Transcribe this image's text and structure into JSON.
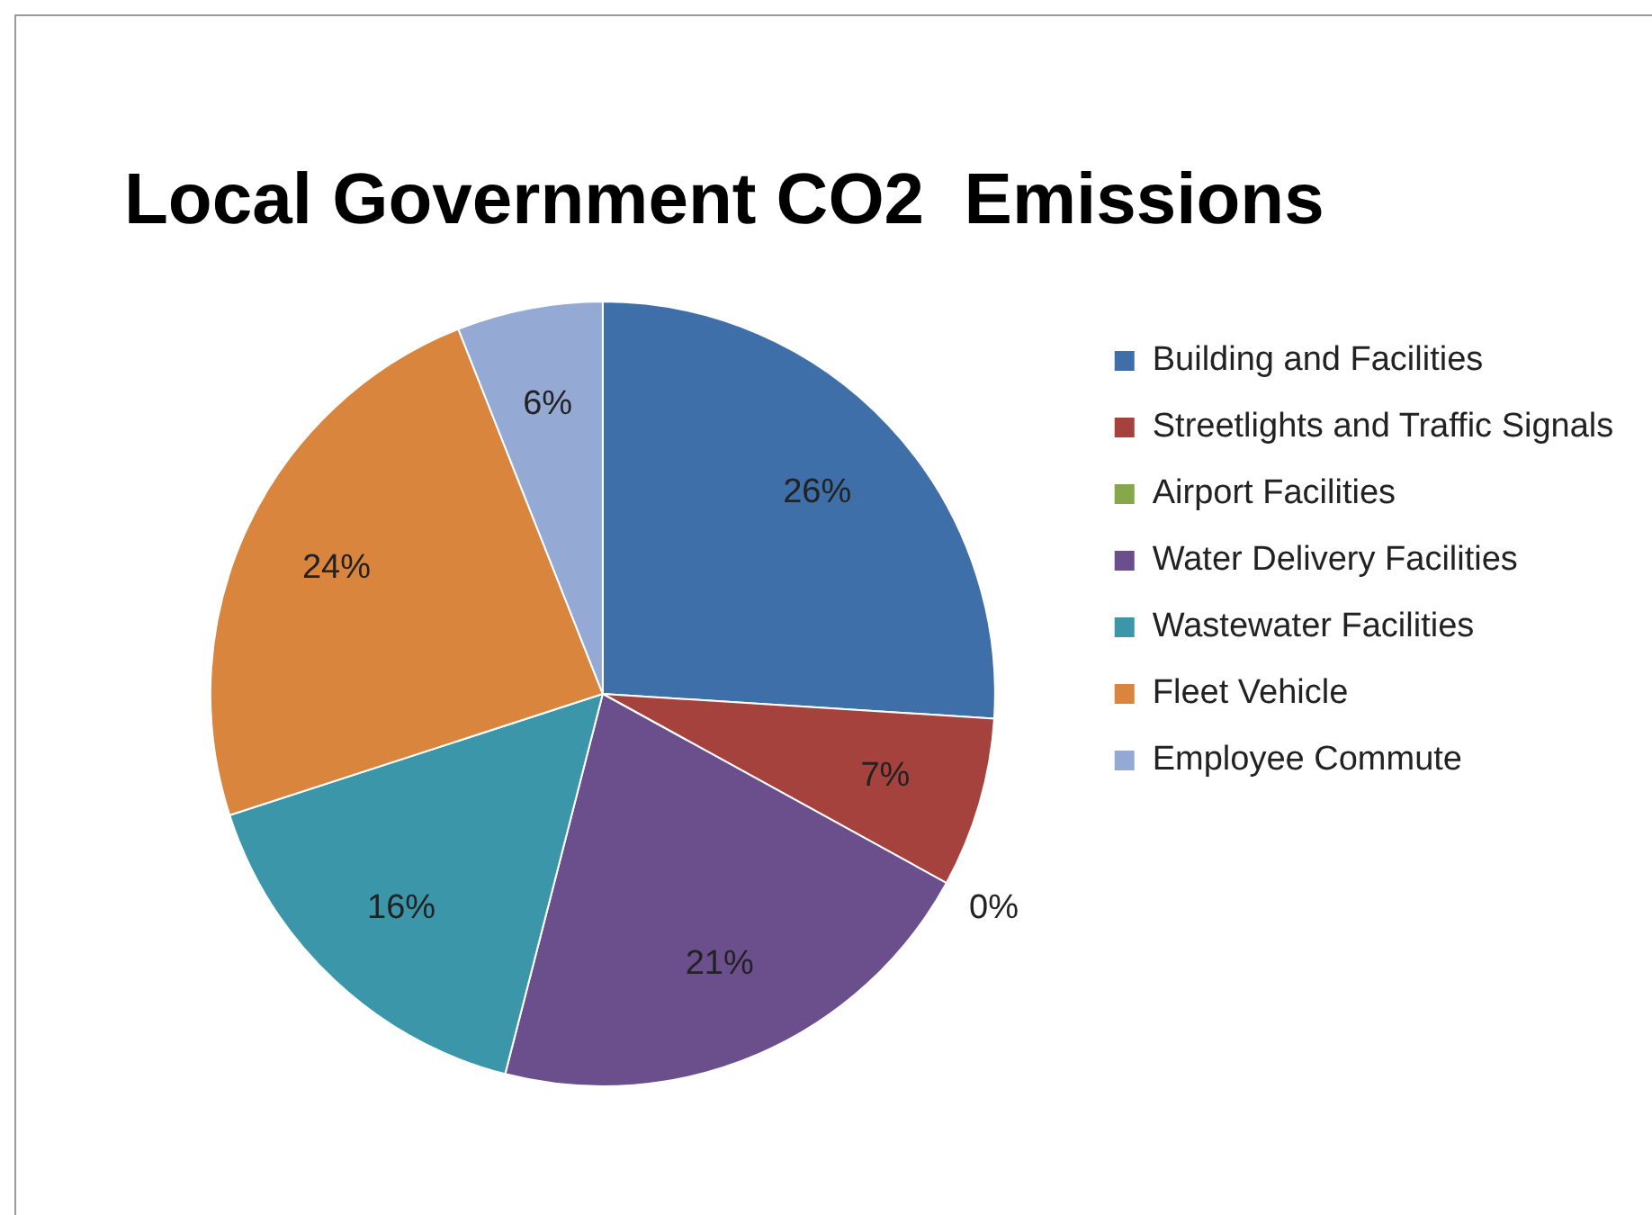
{
  "chart_data": {
    "type": "pie",
    "title": "Local Government CO2  Emissions",
    "categories": [
      "Building and Facilities",
      "Streetlights and Traffic Signals",
      "Airport Facilities",
      "Water Delivery Facilities",
      "Wastewater Facilities",
      "Fleet Vehicle",
      "Employee Commute"
    ],
    "values": [
      26,
      7,
      0,
      21,
      16,
      24,
      6
    ],
    "value_labels": [
      "26%",
      "7%",
      "0%",
      "21%",
      "16%",
      "24%",
      "6%"
    ],
    "colors": [
      "#3f6fa8",
      "#a6423d",
      "#86a84a",
      "#6a4f8c",
      "#3a96a8",
      "#d9853e",
      "#94aad4"
    ],
    "legend": "right"
  }
}
